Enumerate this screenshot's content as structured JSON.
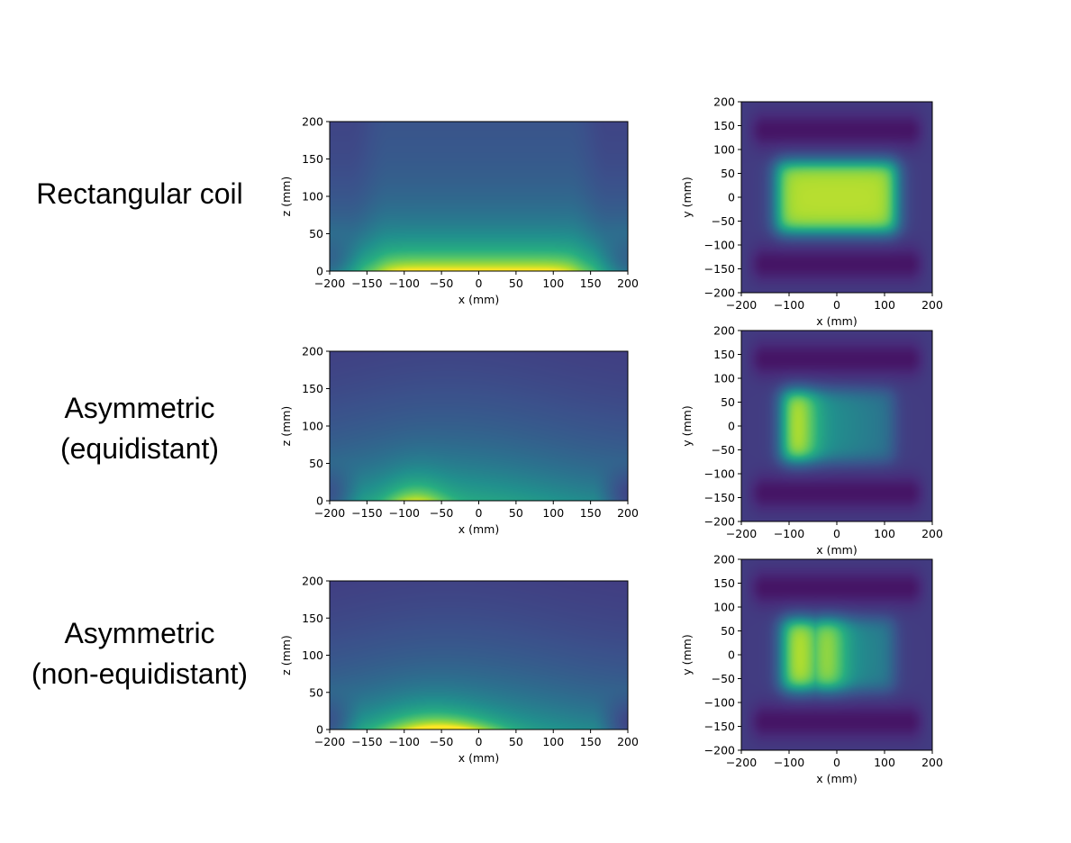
{
  "row_labels": [
    {
      "lines": [
        "Rectangular coil"
      ]
    },
    {
      "lines": [
        "Asymmetric",
        "(equidistant)"
      ]
    },
    {
      "lines": [
        "Asymmetric",
        "(non-equidistant)"
      ]
    }
  ],
  "chart_data": [
    {
      "type": "heatmap",
      "view": "xz",
      "row": "Rectangular coil",
      "xlabel": "x (mm)",
      "ylabel": "z (mm)",
      "xlim": [
        -200,
        200
      ],
      "ylim": [
        0,
        200
      ],
      "xticks": [
        -200,
        -150,
        -100,
        -50,
        0,
        50,
        100,
        150,
        200
      ],
      "yticks": [
        0,
        50,
        100,
        150,
        200
      ],
      "colormap": "viridis",
      "field": {
        "model": "rectangular",
        "hotspot": "uniform strip z 0-25, x -120 to 120"
      }
    },
    {
      "type": "heatmap",
      "view": "xy",
      "row": "Rectangular coil",
      "xlabel": "x (mm)",
      "ylabel": "y (mm)",
      "xlim": [
        -200,
        200
      ],
      "ylim": [
        -200,
        200
      ],
      "xticks": [
        -200,
        -100,
        0,
        100,
        200
      ],
      "yticks": [
        -200,
        -150,
        -100,
        -50,
        0,
        50,
        100,
        150,
        200
      ],
      "colormap": "viridis",
      "field": {
        "model": "rectangular",
        "hotspot": "x -120 to 120, y -75 to 75"
      }
    },
    {
      "type": "heatmap",
      "view": "xz",
      "row": "Asymmetric (equidistant)",
      "xlabel": "x (mm)",
      "ylabel": "z (mm)",
      "xlim": [
        -200,
        200
      ],
      "ylim": [
        0,
        200
      ],
      "xticks": [
        -200,
        -150,
        -100,
        -50,
        0,
        50,
        100,
        150,
        200
      ],
      "yticks": [
        0,
        50,
        100,
        150,
        200
      ],
      "colormap": "viridis",
      "field": {
        "model": "equidistant",
        "hotspot": "x -100 to -70 near z 0"
      }
    },
    {
      "type": "heatmap",
      "view": "xy",
      "row": "Asymmetric (equidistant)",
      "xlabel": "x (mm)",
      "ylabel": "y (mm)",
      "xlim": [
        -200,
        200
      ],
      "ylim": [
        -200,
        200
      ],
      "xticks": [
        -200,
        -100,
        0,
        100,
        200
      ],
      "yticks": [
        -200,
        -150,
        -100,
        -50,
        0,
        50,
        100,
        150,
        200
      ],
      "colormap": "viridis",
      "field": {
        "model": "equidistant",
        "hotspot": "x -110 to -60, y -60 to 60"
      }
    },
    {
      "type": "heatmap",
      "view": "xz",
      "row": "Asymmetric (non-equidistant)",
      "xlabel": "x (mm)",
      "ylabel": "z (mm)",
      "xlim": [
        -200,
        200
      ],
      "ylim": [
        0,
        200
      ],
      "xticks": [
        -200,
        -150,
        -100,
        -50,
        0,
        50,
        100,
        150,
        200
      ],
      "yticks": [
        0,
        50,
        100,
        150,
        200
      ],
      "colormap": "viridis",
      "field": {
        "model": "non-equidistant",
        "hotspot": "x -110 to 0 near z 0"
      }
    },
    {
      "type": "heatmap",
      "view": "xy",
      "row": "Asymmetric (non-equidistant)",
      "xlabel": "x (mm)",
      "ylabel": "y (mm)",
      "xlim": [
        -200,
        200
      ],
      "ylim": [
        -200,
        200
      ],
      "xticks": [
        -200,
        -100,
        0,
        100,
        200
      ],
      "yticks": [
        -200,
        -150,
        -100,
        -50,
        0,
        50,
        100,
        150,
        200
      ],
      "colormap": "viridis",
      "field": {
        "model": "non-equidistant",
        "hotspot": "x -110 to 0, y -60 to 60"
      }
    }
  ]
}
